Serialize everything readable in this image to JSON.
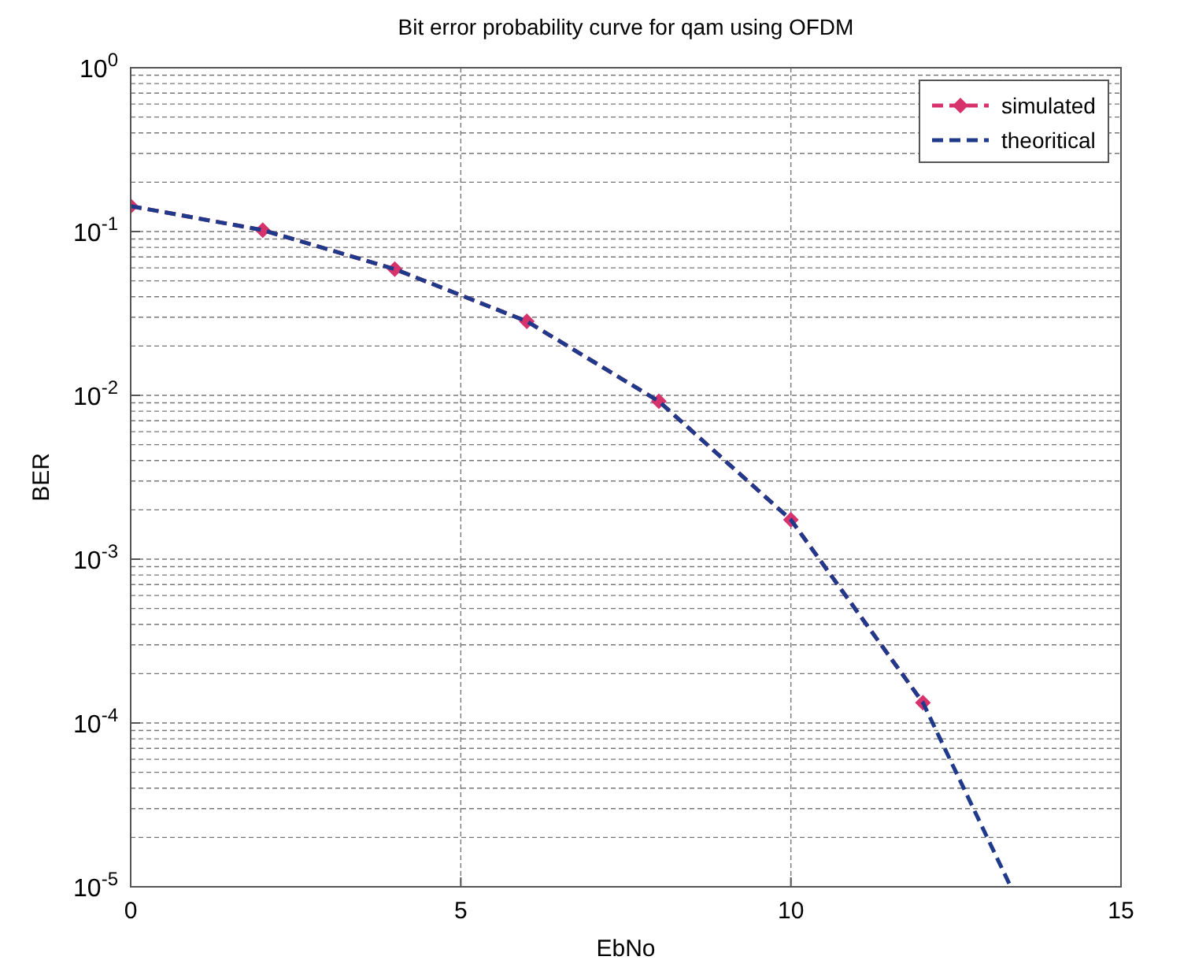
{
  "chart_data": {
    "type": "line",
    "title": "Bit error probability curve for qam using OFDM",
    "xlabel": "EbNo",
    "ylabel": "BER",
    "xlim": [
      0,
      15
    ],
    "xticks": [
      0,
      5,
      10,
      15
    ],
    "ylim": [
      1e-05,
      1
    ],
    "log": "y",
    "yticks": [
      {
        "value": 1,
        "label": "10$^{0}$"
      },
      {
        "value": 0.1,
        "label": "10$^{-1}$"
      },
      {
        "value": 0.01,
        "label": "10$^{-2}$"
      },
      {
        "value": 0.001,
        "label": "10$^{-3}$"
      },
      {
        "value": 0.0001,
        "label": "10$^{-4}$"
      },
      {
        "value": 1e-05,
        "label": "10$^{-5}$"
      }
    ],
    "grid": true,
    "legend": "top right",
    "line_style": "dashed",
    "series": [
      {
        "name": "simulated",
        "color": "#d6336c",
        "marker": "diamond",
        "x": [
          0,
          2,
          4,
          6,
          8,
          10,
          12
        ],
        "values": [
          0.143,
          0.102,
          0.059,
          0.0283,
          0.0092,
          0.00174,
          0.000133
        ]
      },
      {
        "name": "theoritical",
        "color": "#1f3a8a",
        "marker": "none",
        "x": [
          0,
          2,
          4,
          6,
          8,
          10,
          12,
          13.33
        ],
        "values": [
          0.143,
          0.102,
          0.059,
          0.0283,
          0.0092,
          0.00174,
          0.000133,
          1e-05
        ]
      }
    ]
  }
}
